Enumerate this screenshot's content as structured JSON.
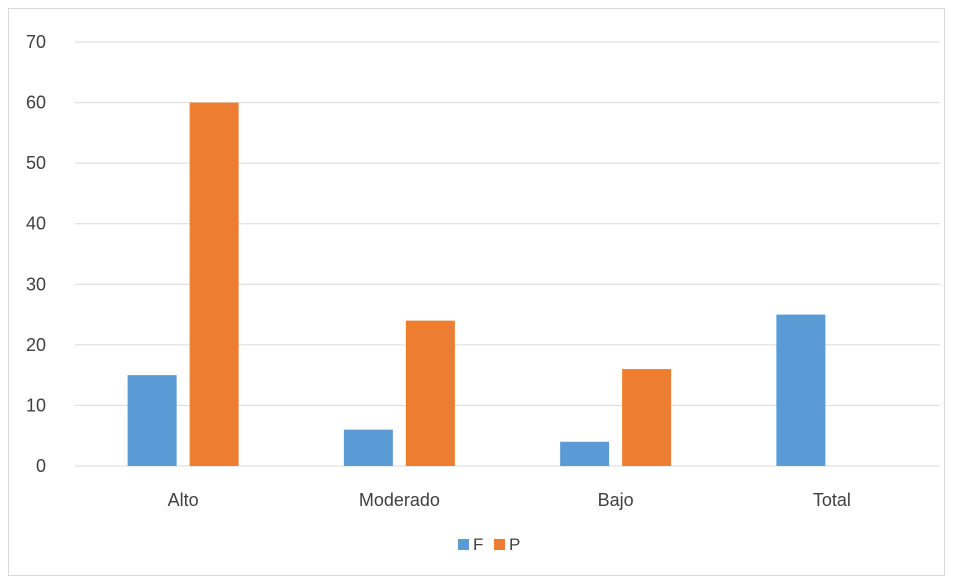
{
  "chart_data": {
    "type": "bar",
    "title": "",
    "xlabel": "",
    "ylabel": "",
    "categories": [
      "Alto",
      "Moderado",
      "Bajo",
      "Total"
    ],
    "series": [
      {
        "name": "F",
        "color": "#5b9bd5",
        "values": [
          15,
          6,
          4,
          25
        ]
      },
      {
        "name": "P",
        "color": "#ed7d31",
        "values": [
          60,
          24,
          16,
          0
        ]
      }
    ],
    "ylim": [
      0,
      70
    ],
    "yticks": [
      "0",
      "10",
      "20",
      "30",
      "40",
      "50",
      "60",
      "70"
    ],
    "grid": true,
    "legend": "bottom",
    "gridline_color": "#d9d9d9"
  }
}
